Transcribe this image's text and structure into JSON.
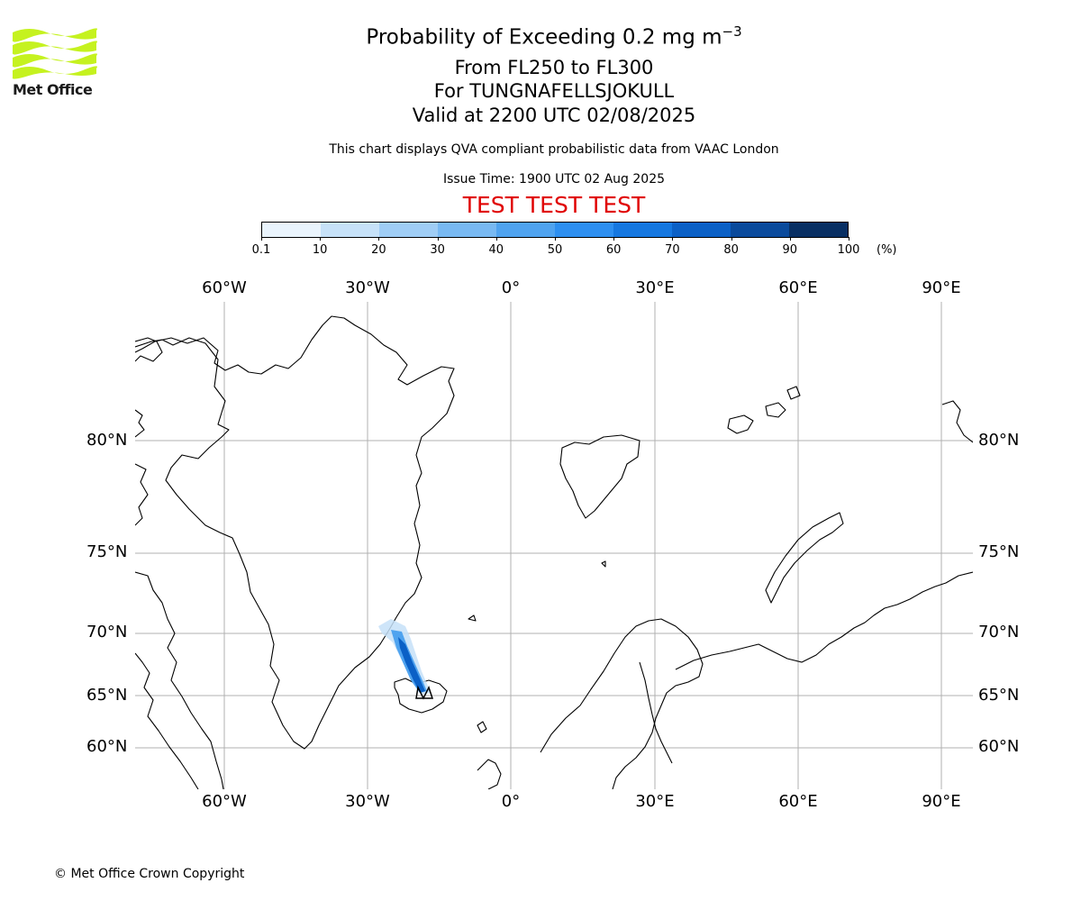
{
  "header": {
    "logo_text": "Met Office",
    "title": "Probability of Exceeding 0.2 mg m",
    "title_superscript": "−3",
    "subtitle_levels": "From FL250 to FL300",
    "subtitle_volcano": "For TUNGNAFELLSJOKULL",
    "subtitle_valid": "Valid at 2200 UTC 02/08/2025",
    "disclaimer": "This chart displays QVA compliant probabilistic data from VAAC London",
    "issue_time": "Issue Time: 1900 UTC 02 Aug 2025",
    "test_banner": "TEST TEST TEST"
  },
  "colorbar": {
    "ticks": [
      "0.1",
      "10",
      "20",
      "30",
      "40",
      "50",
      "60",
      "70",
      "80",
      "90",
      "100"
    ],
    "unit": "(%)",
    "colors": [
      "#eaf4fd",
      "#c6e1f8",
      "#9fcdf5",
      "#78b9f2",
      "#4fa3ef",
      "#2d8ff0",
      "#1577e0",
      "#0b60c6",
      "#0a4a9c",
      "#082f63"
    ]
  },
  "map": {
    "lon_labels": [
      "60°W",
      "30°W",
      "0°",
      "30°E",
      "60°E",
      "90°E"
    ],
    "lat_labels": [
      "80°N",
      "75°N",
      "70°N",
      "65°N",
      "60°N"
    ],
    "plume_source": "TUNGNAFELLSJOKULL",
    "colors": {
      "coast": "#000000",
      "grid": "#b0b0b0",
      "plume_low": "#78b9f2",
      "plume_high": "#0b60c6"
    }
  },
  "footer": {
    "copyright": "© Met Office Crown Copyright"
  }
}
